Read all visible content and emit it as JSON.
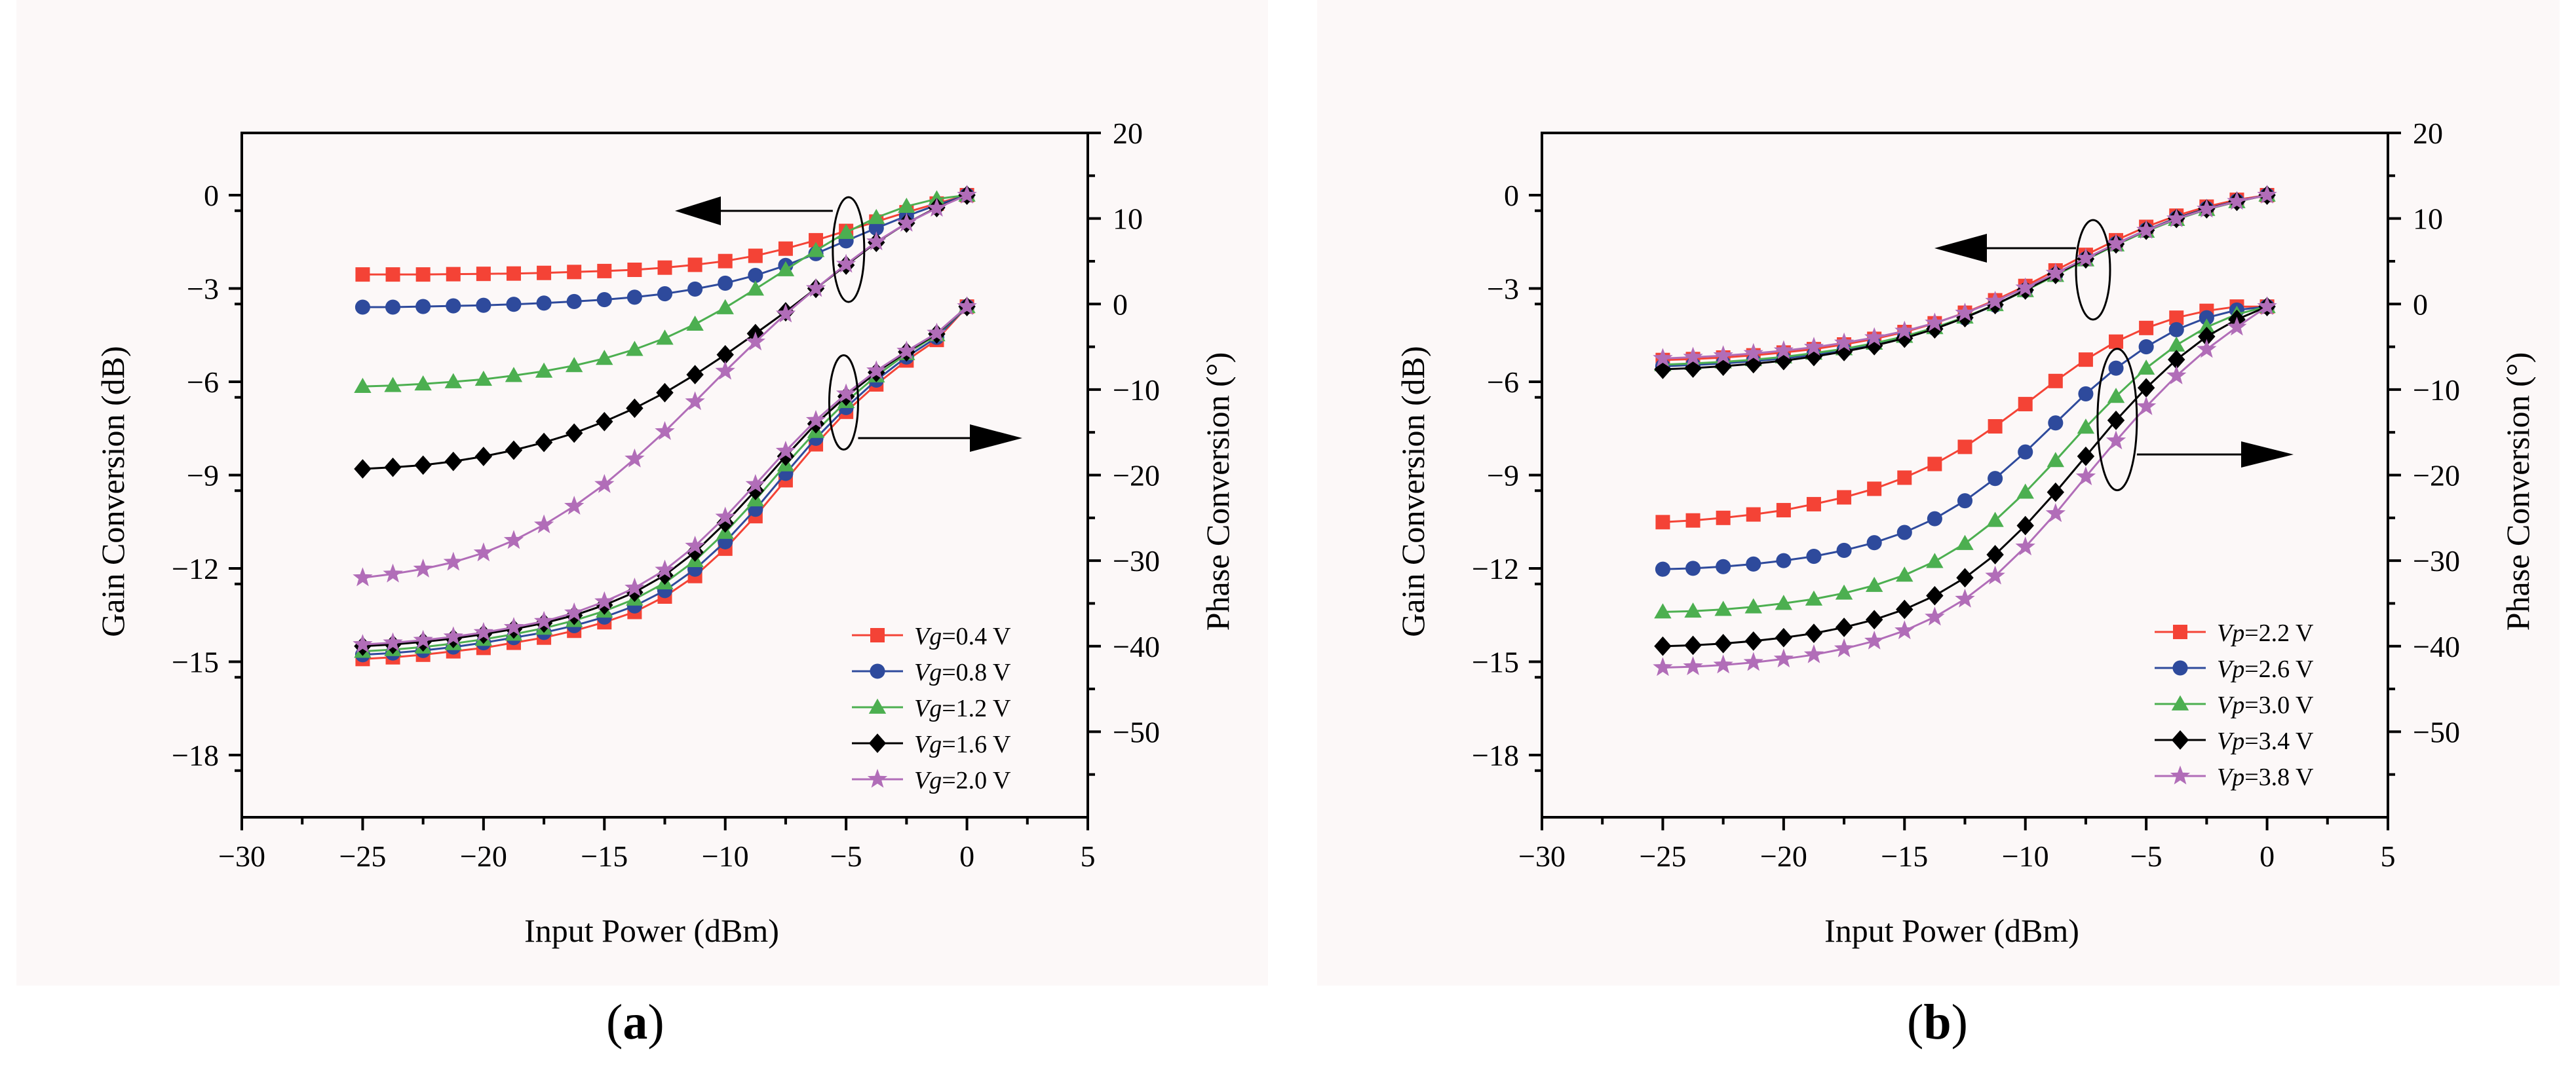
{
  "figure": {
    "captions": [
      {
        "open": "(",
        "letter": "a",
        "close": ")"
      },
      {
        "open": "(",
        "letter": "b",
        "close": ")"
      }
    ]
  },
  "chart_data": [
    {
      "type": "line",
      "panel": "a",
      "xlabel": "Input Power (dBm)",
      "ylabel_left": "Gain Conversion (dB)",
      "ylabel_right": "Phase Conversion (°)",
      "xlim": [
        -30,
        5
      ],
      "ylim_left": [
        -20,
        2
      ],
      "ylim_right": [
        -60,
        20
      ],
      "xticks": [
        "−30",
        "−25",
        "−20",
        "−15",
        "−10",
        "−5",
        "0",
        "5"
      ],
      "xtick_values": [
        -30,
        -25,
        -20,
        -15,
        -10,
        -5,
        0,
        5
      ],
      "yticks_left": [
        "0",
        "−3",
        "−6",
        "−9",
        "−12",
        "−15",
        "−18"
      ],
      "ytick_values_left": [
        0,
        -3,
        -6,
        -9,
        -12,
        -15,
        -18
      ],
      "yticks_right": [
        "20",
        "10",
        "0",
        "−10",
        "−20",
        "−30",
        "−40",
        "−50"
      ],
      "ytick_values_right": [
        20,
        10,
        0,
        -10,
        -20,
        -30,
        -40,
        -50
      ],
      "legend_position": "bottom-right",
      "x": [
        -25,
        -23.75,
        -22.5,
        -21.25,
        -20,
        -18.75,
        -17.5,
        -16.25,
        -15,
        -13.75,
        -12.5,
        -11.25,
        -10,
        -8.75,
        -7.5,
        -6.25,
        -5,
        -3.75,
        -2.5,
        -1.25,
        0
      ],
      "series": [
        {
          "name": "Vg=0.4 V",
          "var": "Vg",
          "value": "=0.4 V",
          "color": "#f44336",
          "marker": "square",
          "gain": [
            -2.55,
            -2.55,
            -2.55,
            -2.54,
            -2.53,
            -2.52,
            -2.5,
            -2.47,
            -2.44,
            -2.4,
            -2.33,
            -2.24,
            -2.12,
            -1.95,
            -1.72,
            -1.45,
            -1.15,
            -0.85,
            -0.55,
            -0.27,
            0
          ],
          "phase": [
            -41.5,
            -41.3,
            -41,
            -40.6,
            -40.2,
            -39.6,
            -39,
            -38.2,
            -37.2,
            -36,
            -34.2,
            -31.8,
            -28.6,
            -24.8,
            -20.6,
            -16.4,
            -12.6,
            -9.4,
            -6.6,
            -4.2,
            -0.3
          ]
        },
        {
          "name": "Vg=0.8 V",
          "var": "Vg",
          "value": "=0.8 V",
          "color": "#2e4a9c",
          "marker": "circle",
          "gain": [
            -3.6,
            -3.6,
            -3.58,
            -3.56,
            -3.54,
            -3.51,
            -3.47,
            -3.42,
            -3.36,
            -3.28,
            -3.17,
            -3.02,
            -2.83,
            -2.58,
            -2.26,
            -1.88,
            -1.47,
            -1.06,
            -0.67,
            -0.32,
            0
          ],
          "phase": [
            -41,
            -40.8,
            -40.5,
            -40.1,
            -39.6,
            -39,
            -38.4,
            -37.6,
            -36.6,
            -35.3,
            -33.5,
            -31,
            -27.8,
            -24,
            -19.8,
            -15.7,
            -12.1,
            -8.9,
            -6.2,
            -3.9,
            -0.3
          ]
        },
        {
          "name": "Vg=1.2 V",
          "var": "Vg",
          "value": "=1.2 V",
          "color": "#4caf50",
          "marker": "triangle",
          "gain": [
            -6.15,
            -6.12,
            -6.07,
            -6.0,
            -5.92,
            -5.8,
            -5.66,
            -5.48,
            -5.25,
            -4.96,
            -4.6,
            -4.15,
            -3.62,
            -3.02,
            -2.4,
            -1.78,
            -1.2,
            -0.72,
            -0.36,
            -0.12,
            0
          ],
          "phase": [
            -40.6,
            -40.4,
            -40.1,
            -39.7,
            -39.2,
            -38.6,
            -37.9,
            -37,
            -35.9,
            -34.5,
            -32.6,
            -30,
            -26.7,
            -22.9,
            -18.8,
            -14.9,
            -11.4,
            -8.4,
            -5.8,
            -3.6,
            -0.3
          ]
        },
        {
          "name": "Vg=1.6 V",
          "var": "Vg",
          "value": "=1.6 V",
          "color": "#000000",
          "marker": "diamond",
          "gain": [
            -8.8,
            -8.75,
            -8.68,
            -8.56,
            -8.4,
            -8.2,
            -7.95,
            -7.65,
            -7.28,
            -6.85,
            -6.35,
            -5.77,
            -5.13,
            -4.45,
            -3.75,
            -3.0,
            -2.25,
            -1.52,
            -0.9,
            -0.4,
            0
          ],
          "phase": [
            -40,
            -39.8,
            -39.5,
            -39.1,
            -38.6,
            -38,
            -37.3,
            -36.4,
            -35.2,
            -33.7,
            -31.7,
            -29,
            -25.6,
            -21.8,
            -17.8,
            -14,
            -10.8,
            -8,
            -5.6,
            -3.5,
            -0.3
          ]
        },
        {
          "name": "Vg=2.0 V",
          "var": "Vg",
          "value": "=2.0 V",
          "color": "#b16db8",
          "marker": "star",
          "gain": [
            -12.3,
            -12.18,
            -12.02,
            -11.8,
            -11.5,
            -11.1,
            -10.6,
            -10.0,
            -9.3,
            -8.48,
            -7.6,
            -6.64,
            -5.66,
            -4.72,
            -3.82,
            -3.0,
            -2.22,
            -1.5,
            -0.9,
            -0.42,
            0
          ],
          "phase": [
            -39.8,
            -39.6,
            -39.3,
            -38.9,
            -38.4,
            -37.8,
            -37.1,
            -36.1,
            -34.8,
            -33.2,
            -31.1,
            -28.3,
            -24.9,
            -21.1,
            -17.2,
            -13.6,
            -10.5,
            -7.8,
            -5.5,
            -3.4,
            -0.3
          ]
        }
      ],
      "annotations": {
        "gain_arrow_label": "",
        "phase_arrow_label": ""
      }
    },
    {
      "type": "line",
      "panel": "b",
      "xlabel": "Input Power (dBm)",
      "ylabel_left": "Gain Conversion (dB)",
      "ylabel_right": "Phase Conversion (°)",
      "xlim": [
        -30,
        5
      ],
      "ylim_left": [
        -20,
        2
      ],
      "ylim_right": [
        -60,
        20
      ],
      "xticks": [
        "−30",
        "−25",
        "−20",
        "−15",
        "−10",
        "−5",
        "0",
        "5"
      ],
      "xtick_values": [
        -30,
        -25,
        -20,
        -15,
        -10,
        -5,
        0,
        5
      ],
      "yticks_left": [
        "0",
        "−3",
        "−6",
        "−9",
        "−12",
        "−15",
        "−18"
      ],
      "ytick_values_left": [
        0,
        -3,
        -6,
        -9,
        -12,
        -15,
        -18
      ],
      "yticks_right": [
        "20",
        "10",
        "0",
        "−10",
        "−20",
        "−30",
        "−40",
        "−50"
      ],
      "ytick_values_right": [
        20,
        10,
        0,
        -10,
        -20,
        -30,
        -40,
        -50
      ],
      "legend_position": "bottom-right",
      "x": [
        -25,
        -23.75,
        -22.5,
        -21.25,
        -20,
        -18.75,
        -17.5,
        -16.25,
        -15,
        -13.75,
        -12.5,
        -11.25,
        -10,
        -8.75,
        -7.5,
        -6.25,
        -5,
        -3.75,
        -2.5,
        -1.25,
        0
      ],
      "series": [
        {
          "name": "Vp=2.2 V",
          "var": "Vp",
          "value": "=2.2 V",
          "color": "#f44336",
          "marker": "square",
          "gain": [
            -5.3,
            -5.27,
            -5.22,
            -5.15,
            -5.06,
            -4.95,
            -4.8,
            -4.62,
            -4.4,
            -4.12,
            -3.78,
            -3.38,
            -2.92,
            -2.42,
            -1.92,
            -1.45,
            -1.02,
            -0.66,
            -0.37,
            -0.15,
            0
          ],
          "phase": [
            -25.5,
            -25.3,
            -25,
            -24.6,
            -24.1,
            -23.4,
            -22.6,
            -21.6,
            -20.3,
            -18.7,
            -16.7,
            -14.3,
            -11.7,
            -9,
            -6.5,
            -4.4,
            -2.8,
            -1.6,
            -0.8,
            -0.3,
            -0.3
          ]
        },
        {
          "name": "Vp=2.6 V",
          "var": "Vp",
          "value": "=2.6 V",
          "color": "#2e4a9c",
          "marker": "circle",
          "gain": [
            -5.5,
            -5.46,
            -5.41,
            -5.34,
            -5.25,
            -5.13,
            -4.98,
            -4.8,
            -4.57,
            -4.28,
            -3.94,
            -3.53,
            -3.06,
            -2.56,
            -2.05,
            -1.56,
            -1.12,
            -0.74,
            -0.43,
            -0.19,
            0
          ],
          "phase": [
            -31,
            -30.9,
            -30.7,
            -30.4,
            -30,
            -29.5,
            -28.8,
            -27.9,
            -26.7,
            -25.1,
            -23,
            -20.4,
            -17.3,
            -13.9,
            -10.5,
            -7.5,
            -5,
            -3,
            -1.6,
            -0.7,
            -0.3
          ]
        },
        {
          "name": "Vp=3.0 V",
          "var": "Vp",
          "value": "=3.0 V",
          "color": "#4caf50",
          "marker": "triangle",
          "gain": [
            -5.45,
            -5.41,
            -5.36,
            -5.29,
            -5.2,
            -5.08,
            -4.94,
            -4.76,
            -4.54,
            -4.26,
            -3.92,
            -3.52,
            -3.07,
            -2.58,
            -2.08,
            -1.6,
            -1.16,
            -0.78,
            -0.46,
            -0.21,
            0
          ],
          "phase": [
            -36,
            -35.9,
            -35.7,
            -35.4,
            -35,
            -34.5,
            -33.8,
            -32.9,
            -31.7,
            -30.1,
            -28,
            -25.3,
            -22,
            -18.3,
            -14.4,
            -10.8,
            -7.5,
            -4.8,
            -2.7,
            -1.2,
            -0.3
          ]
        },
        {
          "name": "Vp=3.4 V",
          "var": "Vp",
          "value": "=3.4 V",
          "color": "#000000",
          "marker": "diamond",
          "gain": [
            -5.6,
            -5.56,
            -5.5,
            -5.42,
            -5.32,
            -5.19,
            -5.03,
            -4.84,
            -4.6,
            -4.3,
            -3.94,
            -3.52,
            -3.05,
            -2.55,
            -2.05,
            -1.57,
            -1.13,
            -0.75,
            -0.44,
            -0.2,
            0
          ],
          "phase": [
            -40,
            -39.9,
            -39.7,
            -39.4,
            -39,
            -38.5,
            -37.8,
            -36.9,
            -35.7,
            -34.1,
            -32,
            -29.3,
            -25.9,
            -22,
            -17.8,
            -13.6,
            -9.8,
            -6.5,
            -3.8,
            -1.8,
            -0.3
          ]
        },
        {
          "name": "Vp=3.8 V",
          "var": "Vp",
          "value": "=3.8 V",
          "color": "#b16db8",
          "marker": "star",
          "gain": [
            -5.25,
            -5.21,
            -5.16,
            -5.09,
            -5.0,
            -4.89,
            -4.75,
            -4.58,
            -4.37,
            -4.11,
            -3.79,
            -3.41,
            -2.98,
            -2.51,
            -2.03,
            -1.56,
            -1.13,
            -0.76,
            -0.45,
            -0.2,
            0
          ],
          "phase": [
            -42.5,
            -42.4,
            -42.2,
            -41.9,
            -41.5,
            -41,
            -40.3,
            -39.4,
            -38.2,
            -36.6,
            -34.5,
            -31.8,
            -28.4,
            -24.5,
            -20.2,
            -16,
            -12,
            -8.4,
            -5.3,
            -2.7,
            -0.3
          ]
        }
      ],
      "annotations": {
        "gain_arrow_label": "",
        "phase_arrow_label": ""
      }
    }
  ]
}
